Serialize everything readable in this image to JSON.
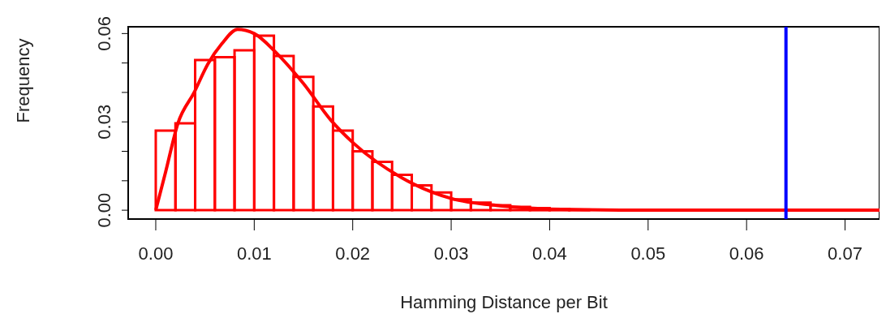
{
  "chart_data": {
    "type": "histogram",
    "xlabel": "Hamming Distance per Bit",
    "ylabel": "Frequency",
    "bins": [
      0,
      0.002,
      0.004,
      0.006,
      0.008,
      0.01,
      0.012,
      0.014,
      0.016,
      0.018,
      0.02,
      0.022,
      0.024,
      0.026,
      0.028,
      0.03,
      0.032,
      0.034,
      0.036,
      0.038,
      0.04,
      0.042,
      0.044
    ],
    "values": [
      0.027,
      0.0295,
      0.051,
      0.052,
      0.0543,
      0.0593,
      0.0524,
      0.0453,
      0.0352,
      0.027,
      0.02,
      0.0164,
      0.012,
      0.0084,
      0.006,
      0.0037,
      0.0026,
      0.0017,
      0.0011,
      0.0007,
      0.0004,
      0.0002
    ],
    "color": "#ff0000",
    "series": [
      {
        "type": "line",
        "color": "#ff0000",
        "x": [
          0,
          0.001,
          0.00225,
          0.0039,
          0.0053,
          0.0067,
          0.0083,
          0.01,
          0.0122,
          0.015,
          0.0178,
          0.02,
          0.025,
          0.03,
          0.035,
          0.04,
          0.05,
          0.0735
        ],
        "values": [
          0,
          0.013,
          0.0295,
          0.04,
          0.0497,
          0.0565,
          0.0614,
          0.06,
          0.0536,
          0.043,
          0.0305,
          0.023,
          0.011,
          0.004,
          0.0015,
          0.0004,
          0,
          0
        ]
      }
    ],
    "xlim": [
      -0.0028,
      0.0735
    ],
    "xticks": [
      {
        "value": 0,
        "label": "0.00"
      },
      0.01,
      0.02,
      0.03,
      0.04,
      0.05,
      0.06,
      0.07
    ],
    "ylim": [
      -0.003,
      0.0623
    ],
    "yticks": [
      {
        "value": 0,
        "label": "0.00"
      },
      {
        "value": 0.01,
        "label": null
      },
      {
        "value": 0.02,
        "label": null
      },
      {
        "value": 0.03,
        "label": "0.03"
      },
      {
        "value": 0.04,
        "label": null
      },
      {
        "value": 0.05,
        "label": null
      },
      {
        "value": 0.06,
        "label": "0.06"
      }
    ],
    "ref_lines": [
      {
        "axis": "x",
        "value": 0.064,
        "color": "#0000ff"
      }
    ],
    "grid": false
  }
}
